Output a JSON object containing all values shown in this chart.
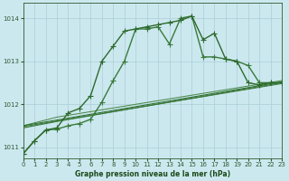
{
  "background_color": "#cce8ef",
  "grid_color": "#aacdd6",
  "xlabel": "Graphe pression niveau de la mer (hPa)",
  "ylim": [
    1010.75,
    1014.35
  ],
  "xlim": [
    0,
    23
  ],
  "yticks": [
    1011,
    1012,
    1013,
    1014
  ],
  "xticks": [
    0,
    1,
    2,
    3,
    4,
    5,
    6,
    7,
    8,
    9,
    10,
    11,
    12,
    13,
    14,
    15,
    16,
    17,
    18,
    19,
    20,
    21,
    22,
    23
  ],
  "line1": {
    "x": [
      0,
      1,
      2,
      3,
      4,
      5,
      6,
      7,
      8,
      9,
      10,
      11,
      12,
      13,
      14,
      15,
      16,
      17,
      18,
      19,
      20,
      21,
      22,
      23
    ],
    "y": [
      1010.85,
      1011.15,
      1011.4,
      1011.45,
      1011.8,
      1011.9,
      1012.2,
      1013.0,
      1013.35,
      1013.7,
      1013.75,
      1013.8,
      1013.85,
      1013.9,
      1013.95,
      1014.05,
      1013.5,
      1013.65,
      1013.05,
      1013.0,
      1012.5,
      1012.45,
      1012.5,
      1012.5
    ],
    "color": "#2d6a2d",
    "linewidth": 1.0,
    "marker": "+",
    "markersize": 4.0
  },
  "line2": {
    "x": [
      0,
      1,
      2,
      3,
      4,
      5,
      6,
      7,
      8,
      9,
      10,
      11,
      12,
      13,
      14,
      15,
      16,
      17,
      18,
      19,
      20,
      21,
      22,
      23
    ],
    "y": [
      1010.85,
      1011.15,
      1011.4,
      1011.42,
      1011.5,
      1011.55,
      1011.65,
      1012.05,
      1012.55,
      1013.0,
      1013.75,
      1013.75,
      1013.8,
      1013.4,
      1014.0,
      1014.05,
      1013.1,
      1013.1,
      1013.05,
      1013.0,
      1012.9,
      1012.5,
      1012.5,
      1012.5
    ],
    "color": "#3a7a3a",
    "linewidth": 1.0,
    "marker": "+",
    "markersize": 4.0
  },
  "line3": {
    "x": [
      0,
      3,
      23
    ],
    "y": [
      1011.45,
      1011.65,
      1012.5
    ],
    "color": "#4a8a4a",
    "linewidth": 0.8
  },
  "line4": {
    "x": [
      0,
      3,
      23
    ],
    "y": [
      1011.45,
      1011.65,
      1012.5
    ],
    "color": "#5a9a5a",
    "linewidth": 0.7
  }
}
